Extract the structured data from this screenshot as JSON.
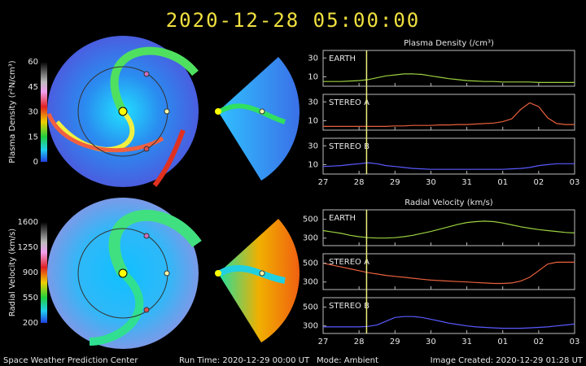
{
  "timestamp": "2020-12-28  05:00:00",
  "footer": {
    "center": "Space Weather Prediction Center",
    "run_time": "Run Time: 2020-12-29 00:00 UT",
    "mode": "Mode: Ambient",
    "created": "Image Created: 2020-12-29 01:28 UT"
  },
  "colorbars": [
    {
      "label": "Plasma Density (r²N/cm³)",
      "lim": [
        0,
        60
      ],
      "ticks": [
        0,
        15,
        30,
        45,
        60
      ]
    },
    {
      "label": "Radial Velocity (km/s)",
      "lim": [
        200,
        1600
      ],
      "ticks": [
        200,
        550,
        900,
        1250,
        1600
      ]
    }
  ],
  "chart_data": [
    {
      "type": "line",
      "title": "Plasma Density (/cm³)",
      "x": [
        27,
        27.25,
        27.5,
        27.75,
        28,
        28.25,
        28.5,
        28.75,
        29,
        29.25,
        29.5,
        29.75,
        30,
        30.25,
        30.5,
        30.75,
        31,
        31.25,
        31.5,
        31.75,
        32,
        32.25,
        32.5,
        32.75,
        33,
        33.25,
        33.5,
        33.75,
        34
      ],
      "xlim": [
        27,
        34
      ],
      "xticks": [
        27,
        28,
        29,
        30,
        31,
        {
          "value": 32,
          "label": "01"
        },
        {
          "value": 33,
          "label": "02"
        },
        {
          "value": 34,
          "label": "03"
        }
      ],
      "ylim": [
        0,
        38
      ],
      "yticks": [
        10,
        30
      ],
      "marker_x": 28.21,
      "marker_color": "#f0f080",
      "series": [
        {
          "name": "EARTH",
          "color": "#9ad040",
          "values": [
            5,
            5,
            5,
            5.5,
            6,
            7,
            9,
            11,
            12,
            13,
            13,
            12.5,
            11,
            9.5,
            8,
            7,
            6,
            5.5,
            5,
            5,
            4.5,
            4.5,
            4.5,
            4.5,
            4,
            4,
            4,
            4,
            4
          ]
        },
        {
          "name": "STEREO A",
          "color": "#e8603c",
          "values": [
            4,
            4,
            4,
            4,
            4,
            4,
            4,
            4,
            4.5,
            4.5,
            5,
            5,
            5,
            5.5,
            5.5,
            6,
            6,
            6.5,
            7,
            7.5,
            9,
            12,
            22,
            29,
            25,
            13,
            7,
            6,
            6
          ]
        },
        {
          "name": "STEREO B",
          "color": "#5a5aff",
          "values": [
            8,
            8.5,
            9,
            10,
            11,
            12,
            11,
            9,
            8,
            7,
            6,
            5.5,
            5,
            5,
            5,
            5,
            5,
            5,
            5,
            5,
            5,
            5.5,
            6,
            7,
            9,
            10,
            11,
            11,
            11
          ]
        }
      ]
    },
    {
      "type": "line",
      "title": "Radial Velocity (km/s)",
      "x": [
        27,
        27.25,
        27.5,
        27.75,
        28,
        28.25,
        28.5,
        28.75,
        29,
        29.25,
        29.5,
        29.75,
        30,
        30.25,
        30.5,
        30.75,
        31,
        31.25,
        31.5,
        31.75,
        32,
        32.25,
        32.5,
        32.75,
        33,
        33.25,
        33.5,
        33.75,
        34
      ],
      "xlim": [
        27,
        34
      ],
      "xticks": [
        27,
        28,
        29,
        30,
        31,
        {
          "value": 32,
          "label": "01"
        },
        {
          "value": 33,
          "label": "02"
        },
        {
          "value": 34,
          "label": "03"
        }
      ],
      "ylim": [
        220,
        600
      ],
      "yticks": [
        300,
        500
      ],
      "marker_x": 28.21,
      "marker_color": "#f0f080",
      "series": [
        {
          "name": "EARTH",
          "color": "#9ad040",
          "values": [
            380,
            365,
            350,
            330,
            315,
            305,
            300,
            300,
            305,
            315,
            330,
            350,
            370,
            395,
            420,
            445,
            465,
            475,
            480,
            475,
            460,
            440,
            420,
            405,
            390,
            380,
            370,
            360,
            355
          ]
        },
        {
          "name": "STEREO A",
          "color": "#e8603c",
          "values": [
            500,
            480,
            460,
            440,
            420,
            400,
            385,
            370,
            360,
            350,
            340,
            330,
            320,
            315,
            310,
            305,
            300,
            295,
            290,
            285,
            285,
            290,
            310,
            350,
            420,
            490,
            510,
            510,
            510
          ]
        },
        {
          "name": "STEREO B",
          "color": "#5a5aff",
          "values": [
            290,
            290,
            290,
            290,
            290,
            295,
            310,
            350,
            390,
            400,
            400,
            390,
            370,
            350,
            330,
            315,
            300,
            290,
            285,
            280,
            275,
            275,
            275,
            280,
            285,
            290,
            300,
            310,
            320
          ]
        }
      ]
    }
  ]
}
